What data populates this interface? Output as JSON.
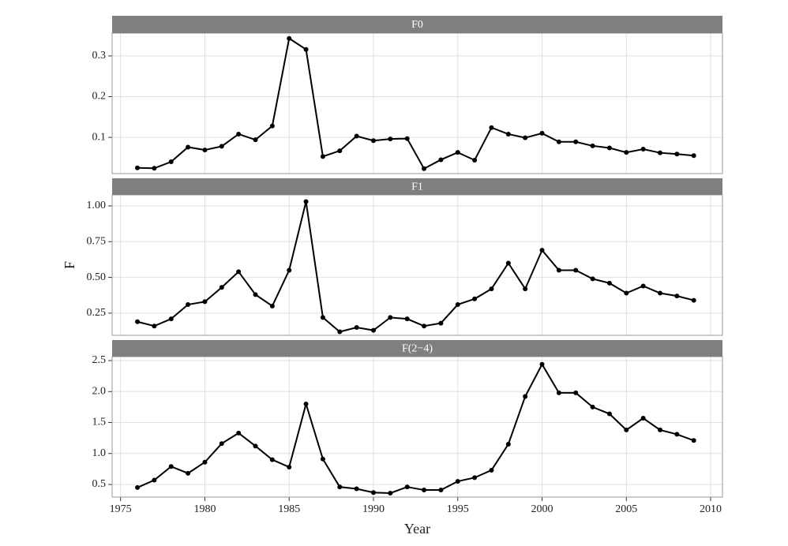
{
  "chart_data": [
    {
      "type": "line",
      "title": "F0",
      "x": [
        1976,
        1977,
        1978,
        1979,
        1980,
        1981,
        1982,
        1983,
        1984,
        1985,
        1986,
        1987,
        1988,
        1989,
        1990,
        1991,
        1992,
        1993,
        1994,
        1995,
        1996,
        1997,
        1998,
        1999,
        2000,
        2001,
        2002,
        2003,
        2004,
        2005,
        2006,
        2007,
        2008,
        2009
      ],
      "values": [
        0.025,
        0.024,
        0.04,
        0.076,
        0.069,
        0.078,
        0.108,
        0.094,
        0.128,
        0.343,
        0.316,
        0.053,
        0.067,
        0.103,
        0.092,
        0.096,
        0.097,
        0.023,
        0.045,
        0.063,
        0.044,
        0.124,
        0.108,
        0.099,
        0.11,
        0.089,
        0.089,
        0.079,
        0.074,
        0.063,
        0.071,
        0.062,
        0.059,
        0.055
      ],
      "color": "#000000",
      "xlim": [
        1974.5,
        2010.7
      ],
      "xticks": [
        1975,
        1980,
        1985,
        1990,
        1995,
        2000,
        2005,
        2010
      ],
      "ylim": [
        0.011,
        0.356
      ],
      "yticks": [
        0.1,
        0.2,
        0.3
      ],
      "grid": true
    },
    {
      "type": "line",
      "title": "F1",
      "ylabel": "F",
      "x": [
        1976,
        1977,
        1978,
        1979,
        1980,
        1981,
        1982,
        1983,
        1984,
        1985,
        1986,
        1987,
        1988,
        1989,
        1990,
        1991,
        1992,
        1993,
        1994,
        1995,
        1996,
        1997,
        1998,
        1999,
        2000,
        2001,
        2002,
        2003,
        2004,
        2005,
        2006,
        2007,
        2008,
        2009
      ],
      "values": [
        0.19,
        0.16,
        0.21,
        0.31,
        0.33,
        0.43,
        0.54,
        0.38,
        0.3,
        0.55,
        1.03,
        0.22,
        0.12,
        0.15,
        0.13,
        0.22,
        0.21,
        0.16,
        0.18,
        0.31,
        0.35,
        0.42,
        0.6,
        0.42,
        0.69,
        0.55,
        0.55,
        0.49,
        0.46,
        0.39,
        0.44,
        0.39,
        0.37,
        0.34
      ],
      "color": "#000000",
      "xlim": [
        1974.5,
        2010.7
      ],
      "xticks": [
        1975,
        1980,
        1985,
        1990,
        1995,
        2000,
        2005,
        2010
      ],
      "ylim": [
        0.095,
        1.077
      ],
      "yticks": [
        {
          "value": 0.25,
          "label": "0.25"
        },
        {
          "value": 0.5,
          "label": "0.50"
        },
        {
          "value": 0.75,
          "label": "0.75"
        },
        {
          "value": 1,
          "label": "1.00"
        }
      ],
      "grid": true
    },
    {
      "type": "line",
      "title": "F(2−4)",
      "xlabel": "Year",
      "x": [
        1976,
        1977,
        1978,
        1979,
        1980,
        1981,
        1982,
        1983,
        1984,
        1985,
        1986,
        1987,
        1988,
        1989,
        1990,
        1991,
        1992,
        1993,
        1994,
        1995,
        1996,
        1997,
        1998,
        1999,
        2000,
        2001,
        2002,
        2003,
        2004,
        2005,
        2006,
        2007,
        2008,
        2009
      ],
      "values": [
        0.45,
        0.57,
        0.79,
        0.68,
        0.86,
        1.16,
        1.33,
        1.12,
        0.9,
        0.78,
        1.8,
        0.91,
        0.46,
        0.43,
        0.37,
        0.36,
        0.46,
        0.41,
        0.41,
        0.55,
        0.61,
        0.73,
        1.15,
        1.92,
        2.44,
        1.98,
        1.98,
        1.75,
        1.64,
        1.38,
        1.57,
        1.38,
        1.31,
        1.21
      ],
      "color": "#000000",
      "xlim": [
        1974.5,
        2010.7
      ],
      "xticks": [
        1975,
        1980,
        1985,
        1990,
        1995,
        2000,
        2005,
        2010
      ],
      "ylim": [
        0.296,
        2.564
      ],
      "yticks": [
        0.5,
        {
          "value": 1,
          "label": "1.0"
        },
        1.5,
        {
          "value": 2,
          "label": "2.0"
        },
        2.5
      ],
      "grid": true
    }
  ]
}
